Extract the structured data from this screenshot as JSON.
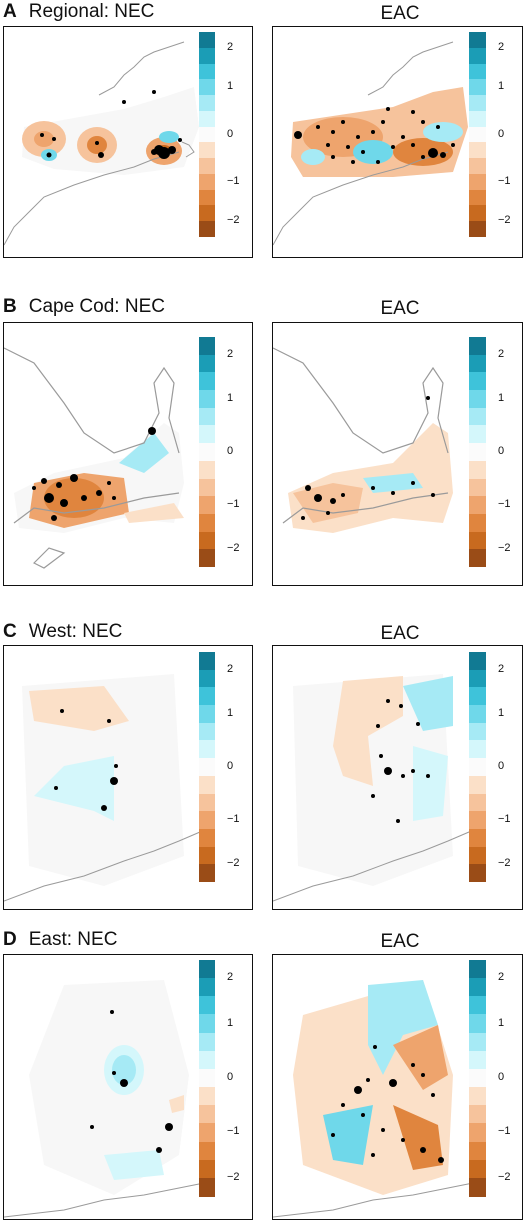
{
  "rows": [
    {
      "letter": "A",
      "left_title": "Regional: NEC",
      "right_title": "EAC"
    },
    {
      "letter": "B",
      "left_title": "Cape Cod: NEC",
      "right_title": "EAC"
    },
    {
      "letter": "C",
      "left_title": "West: NEC",
      "right_title": "EAC"
    },
    {
      "letter": "D",
      "left_title": "East: NEC",
      "right_title": "EAC"
    }
  ],
  "colorbar": {
    "ticks": [
      "2",
      "1",
      "0",
      "−1",
      "−2"
    ],
    "colors": [
      "#117a93",
      "#1b9db6",
      "#3ec3da",
      "#6fd8ea",
      "#a6eaf5",
      "#d4f7fb",
      "#fbfbfb",
      "#fbe0c8",
      "#f6c39c",
      "#eea46d",
      "#e0853e",
      "#c86a1f",
      "#9a4c17"
    ]
  },
  "palette": {
    "orange": "#e5894a",
    "blue": "#5cd0e6",
    "coast": "#9a9a9a",
    "dot": "#000000"
  }
}
